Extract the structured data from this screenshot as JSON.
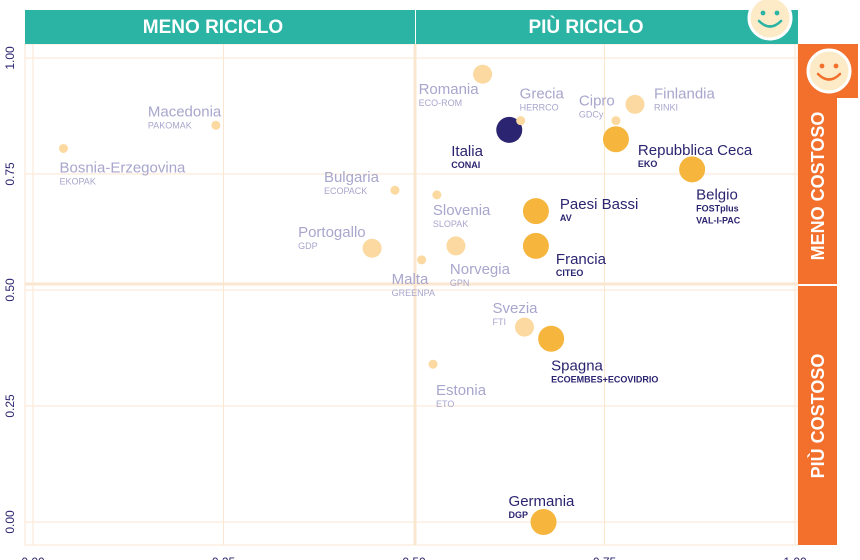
{
  "quadrants": {
    "top_left": "MENO RICICLO",
    "top_right": "PIÙ RICICLO",
    "right_top": "MENO COSTOSO",
    "right_bottom": "PIÙ COSTOSO"
  },
  "colors": {
    "teal": "#2bb3a3",
    "orange": "#f26f2c",
    "navy": "#2b2470",
    "gold": "#f6b53c",
    "pale": "#fbd9a0",
    "faded_text": "#a8a6cc",
    "grid": "#fbe6d0"
  },
  "chart_data": {
    "type": "scatter",
    "x_ticks": [
      "0.00",
      "0.25",
      "0.50",
      "0.75",
      "1.00"
    ],
    "y_ticks": [
      "0.00",
      "0.25",
      "0.50",
      "0.75",
      "1.00"
    ],
    "xlim": [
      0,
      1
    ],
    "ylim": [
      0,
      1
    ],
    "grid": true,
    "points": [
      {
        "name": "Italia",
        "scheme": "CONAI",
        "x": 0.625,
        "y": 0.845,
        "style": "highlight"
      },
      {
        "name": "Repubblica Ceca",
        "scheme": "EKO",
        "x": 0.765,
        "y": 0.825,
        "style": "strong"
      },
      {
        "name": "Belgio",
        "scheme": "FOSTplus VAL-I-PAC",
        "x": 0.865,
        "y": 0.76,
        "style": "strong"
      },
      {
        "name": "Paesi Bassi",
        "scheme": "AV",
        "x": 0.66,
        "y": 0.67,
        "style": "strong"
      },
      {
        "name": "Francia",
        "scheme": "CITEO",
        "x": 0.66,
        "y": 0.595,
        "style": "strong"
      },
      {
        "name": "Spagna",
        "scheme": "ECOEMBES+ECOVIDRIO",
        "x": 0.68,
        "y": 0.395,
        "style": "strong"
      },
      {
        "name": "Germania",
        "scheme": "DGP",
        "x": 0.67,
        "y": 0.0,
        "style": "strong"
      },
      {
        "name": "Romania",
        "scheme": "ECO-ROM",
        "x": 0.59,
        "y": 0.965,
        "style": "faded"
      },
      {
        "name": "Grecia",
        "scheme": "HERRCO",
        "x": 0.64,
        "y": 0.865,
        "style": "faded"
      },
      {
        "name": "Cipro",
        "scheme": "GDCy",
        "x": 0.765,
        "y": 0.865,
        "style": "faded"
      },
      {
        "name": "Finlandia",
        "scheme": "RINKI",
        "x": 0.79,
        "y": 0.9,
        "style": "faded"
      },
      {
        "name": "Macedonia",
        "scheme": "PAKOMAK",
        "x": 0.24,
        "y": 0.855,
        "style": "faded"
      },
      {
        "name": "Bosnia-Erzegovina",
        "scheme": "EKOPAK",
        "x": 0.04,
        "y": 0.805,
        "style": "faded"
      },
      {
        "name": "Bulgaria",
        "scheme": "ECOPACK",
        "x": 0.475,
        "y": 0.715,
        "style": "faded"
      },
      {
        "name": "Slovenia",
        "scheme": "SLOPAK",
        "x": 0.53,
        "y": 0.705,
        "style": "faded"
      },
      {
        "name": "Portogallo",
        "scheme": "GDP",
        "x": 0.445,
        "y": 0.59,
        "style": "faded"
      },
      {
        "name": "Malta",
        "scheme": "GREENPA",
        "x": 0.51,
        "y": 0.565,
        "style": "faded"
      },
      {
        "name": "Norvegia",
        "scheme": "GPN",
        "x": 0.555,
        "y": 0.595,
        "style": "faded"
      },
      {
        "name": "Svezia",
        "scheme": "FTI",
        "x": 0.645,
        "y": 0.42,
        "style": "faded"
      },
      {
        "name": "Estonia",
        "scheme": "ETO",
        "x": 0.525,
        "y": 0.34,
        "style": "faded"
      }
    ]
  }
}
